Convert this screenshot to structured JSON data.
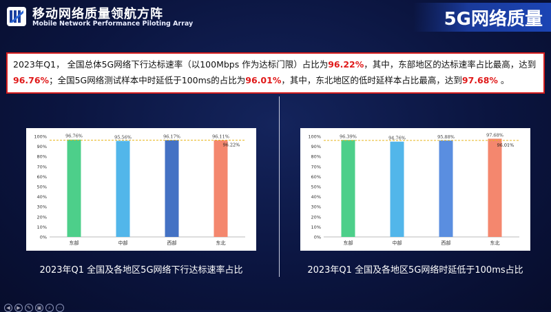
{
  "brand": {
    "name_cn": "移动网络质量领航方阵",
    "name_en": "Mobile Network Performance Piloting Array"
  },
  "page_title": "5G网络质量",
  "summary": {
    "seg1": "2023年Q1，  全国总体5G网络下行达标速率（以100Mbps 作为达标门限）占比为",
    "val1": "96.22%",
    "seg2": "，其中，东部地区的达标速率占比最高，达到",
    "val2": "96.76%",
    "seg3": "；全国5G网络测试样本中时延低于100ms的占比为",
    "val3": "96.01%",
    "seg4": "，其中，东北地区的低时延样本占比最高，达到",
    "val4": "97.68%",
    "seg5": " 。"
  },
  "colors": {
    "bars": [
      "#4dcf8a",
      "#52b6ea",
      "#4472c4",
      "#f4876e"
    ],
    "bars_right": [
      "#4dcf8a",
      "#52b6ea",
      "#5a8ee0",
      "#f4876e"
    ],
    "reference_line": "#e8b51a",
    "highlight": "#e01919"
  },
  "controls": [
    "◀",
    "▶",
    "✎",
    "▣",
    "⌕",
    "⋯"
  ],
  "chart_data": [
    {
      "type": "bar",
      "title": "2023年Q1 全国及各地区5G网络下行达标速率占比",
      "categories": [
        "东部",
        "中部",
        "西部",
        "东北"
      ],
      "values": [
        96.76,
        95.56,
        96.17,
        96.11
      ],
      "data_labels": [
        "96.76%",
        "95.56%",
        "96.17%",
        "96.11%"
      ],
      "reference": {
        "value": 96.22,
        "label": "96.22%"
      },
      "ylim": [
        0,
        100
      ],
      "yticks": [
        0,
        10,
        20,
        30,
        40,
        50,
        60,
        70,
        80,
        90,
        100
      ],
      "ytick_labels": [
        "0%",
        "10%",
        "20%",
        "30%",
        "40%",
        "50%",
        "60%",
        "70%",
        "80%",
        "90%",
        "100%"
      ],
      "grid": false
    },
    {
      "type": "bar",
      "title": "2023年Q1 全国及各地区5G网络时延低于100ms占比",
      "categories": [
        "东部",
        "中部",
        "西部",
        "东北"
      ],
      "values": [
        96.39,
        94.76,
        95.88,
        97.68
      ],
      "data_labels": [
        "96.39%",
        "94.76%",
        "95.88%",
        "97.68%"
      ],
      "reference": {
        "value": 96.01,
        "label": "96.01%"
      },
      "ylim": [
        0,
        100
      ],
      "yticks": [
        0,
        10,
        20,
        30,
        40,
        50,
        60,
        70,
        80,
        90,
        100
      ],
      "ytick_labels": [
        "0%",
        "10%",
        "20%",
        "30%",
        "40%",
        "50%",
        "60%",
        "70%",
        "80%",
        "90%",
        "100%"
      ],
      "grid": false
    }
  ]
}
